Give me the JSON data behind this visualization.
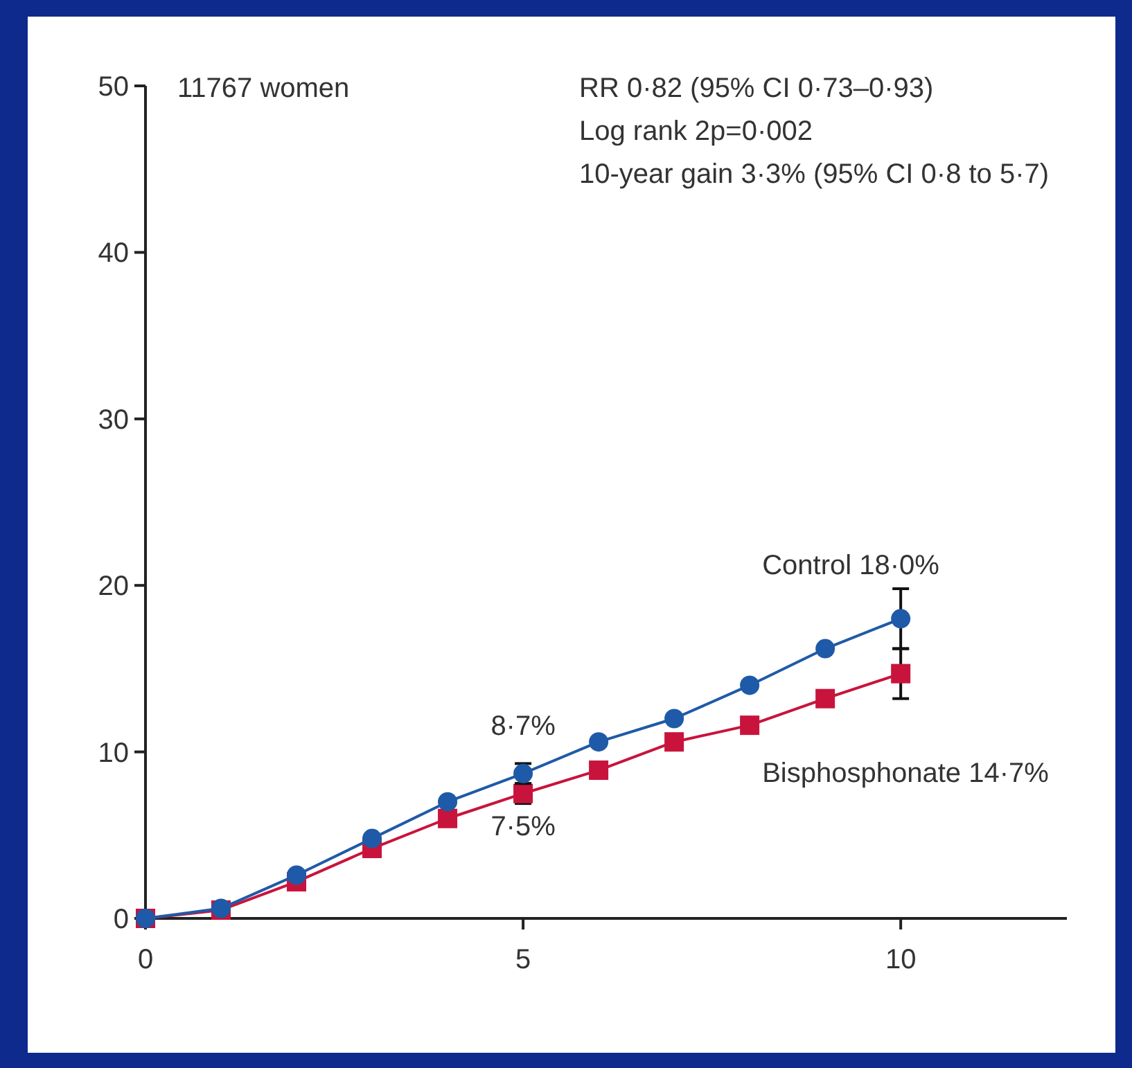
{
  "chart_data": {
    "type": "line",
    "x": [
      0,
      1,
      2,
      3,
      4,
      5,
      6,
      7,
      8,
      9,
      10
    ],
    "xlim": [
      0,
      12.2
    ],
    "xticks": [
      0,
      5,
      10
    ],
    "ylim": [
      0,
      50
    ],
    "yticks": [
      0,
      10,
      20,
      30,
      40,
      50
    ],
    "grid": false,
    "line_style": "solid",
    "series": [
      {
        "color": "#1f5aa8",
        "marker": "circle",
        "values": [
          0,
          0.6,
          2.6,
          4.8,
          7.0,
          8.7,
          10.6,
          12.0,
          14.0,
          16.2,
          18.0
        ],
        "errors": [
          null,
          null,
          null,
          null,
          null,
          [
            8.1,
            9.3
          ],
          null,
          null,
          null,
          null,
          [
            16.2,
            19.8
          ]
        ]
      },
      {
        "color": "#c8143c",
        "marker": "square",
        "values": [
          0,
          0.5,
          2.2,
          4.2,
          6.0,
          7.5,
          8.9,
          10.6,
          11.6,
          13.2,
          14.7
        ],
        "errors": [
          null,
          null,
          null,
          null,
          null,
          [
            6.9,
            8.1
          ],
          null,
          null,
          null,
          null,
          [
            13.2,
            16.2
          ]
        ]
      }
    ],
    "annotations": [
      "11767 women",
      "RR 0·82 (95% CI 0·73–0·93)",
      "Log rank 2p=0·002",
      "10-year gain 3·3% (95% CI 0·8 to 5·7)",
      "8·7%",
      "7·5%",
      "Control 18·0%",
      "Bisphosphonate 14·7%"
    ]
  }
}
